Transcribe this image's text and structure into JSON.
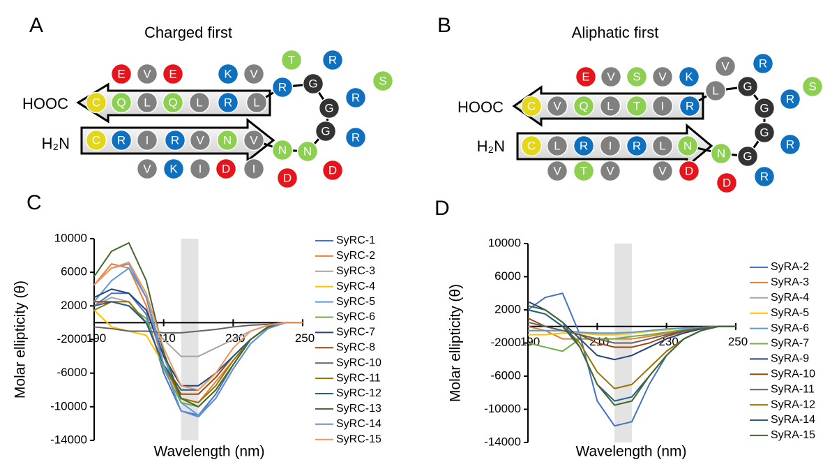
{
  "diagrams": [
    {
      "panel": "A",
      "title": "Charged first",
      "c_term": "HOOC",
      "n_term": "H₂N",
      "residues": [
        {
          "label": "E",
          "color": "#e8141b"
        },
        {
          "label": "V",
          "color": "#808080"
        },
        {
          "label": "E",
          "color": "#e8141b"
        },
        {
          "label": "K",
          "color": "#1070c0"
        },
        {
          "label": "V",
          "color": "#808080"
        },
        {
          "label": "C",
          "color": "#e3d61b"
        },
        {
          "label": "Q",
          "color": "#8dcf50"
        },
        {
          "label": "L",
          "color": "#808080"
        },
        {
          "label": "Q",
          "color": "#8dcf50"
        },
        {
          "label": "L",
          "color": "#808080"
        },
        {
          "label": "R",
          "color": "#1070c0"
        },
        {
          "label": "L",
          "color": "#808080"
        },
        {
          "label": "R",
          "color": "#1070c0"
        },
        {
          "label": "G",
          "color": "#333333"
        },
        {
          "label": "G",
          "color": "#333333"
        },
        {
          "label": "G",
          "color": "#333333"
        },
        {
          "label": "N",
          "color": "#8dcf50"
        },
        {
          "label": "N",
          "color": "#8dcf50"
        },
        {
          "label": "T",
          "color": "#8dcf50"
        },
        {
          "label": "R",
          "color": "#1070c0"
        },
        {
          "label": "R",
          "color": "#1070c0"
        },
        {
          "label": "R",
          "color": "#1070c0"
        },
        {
          "label": "S",
          "color": "#8dcf50"
        },
        {
          "label": "D",
          "color": "#e8141b"
        },
        {
          "label": "D",
          "color": "#e8141b"
        },
        {
          "label": "C",
          "color": "#e3d61b"
        },
        {
          "label": "R",
          "color": "#1070c0"
        },
        {
          "label": "I",
          "color": "#808080"
        },
        {
          "label": "R",
          "color": "#1070c0"
        },
        {
          "label": "V",
          "color": "#808080"
        },
        {
          "label": "N",
          "color": "#8dcf50"
        },
        {
          "label": "V",
          "color": "#808080"
        },
        {
          "label": "V",
          "color": "#808080"
        },
        {
          "label": "K",
          "color": "#1070c0"
        },
        {
          "label": "I",
          "color": "#808080"
        },
        {
          "label": "D",
          "color": "#e8141b"
        },
        {
          "label": "I",
          "color": "#808080"
        }
      ]
    },
    {
      "panel": "B",
      "title": "Aliphatic first",
      "c_term": "HOOC",
      "n_term": "H₂N",
      "residues": [
        {
          "label": "E",
          "color": "#e8141b"
        },
        {
          "label": "V",
          "color": "#808080"
        },
        {
          "label": "S",
          "color": "#8dcf50"
        },
        {
          "label": "V",
          "color": "#808080"
        },
        {
          "label": "K",
          "color": "#1070c0"
        },
        {
          "label": "C",
          "color": "#e3d61b"
        },
        {
          "label": "V",
          "color": "#808080"
        },
        {
          "label": "Q",
          "color": "#8dcf50"
        },
        {
          "label": "L",
          "color": "#808080"
        },
        {
          "label": "T",
          "color": "#8dcf50"
        },
        {
          "label": "I",
          "color": "#808080"
        },
        {
          "label": "R",
          "color": "#1070c0"
        },
        {
          "label": "L",
          "color": "#808080"
        },
        {
          "label": "V",
          "color": "#808080"
        },
        {
          "label": "G",
          "color": "#333333"
        },
        {
          "label": "G",
          "color": "#333333"
        },
        {
          "label": "G",
          "color": "#333333"
        },
        {
          "label": "G",
          "color": "#333333"
        },
        {
          "label": "N",
          "color": "#8dcf50"
        },
        {
          "label": "R",
          "color": "#1070c0"
        },
        {
          "label": "R",
          "color": "#1070c0"
        },
        {
          "label": "S",
          "color": "#8dcf50"
        },
        {
          "label": "R",
          "color": "#1070c0"
        },
        {
          "label": "R",
          "color": "#1070c0"
        },
        {
          "label": "D",
          "color": "#e8141b"
        },
        {
          "label": "C",
          "color": "#e3d61b"
        },
        {
          "label": "L",
          "color": "#808080"
        },
        {
          "label": "R",
          "color": "#1070c0"
        },
        {
          "label": "I",
          "color": "#808080"
        },
        {
          "label": "R",
          "color": "#1070c0"
        },
        {
          "label": "L",
          "color": "#808080"
        },
        {
          "label": "N",
          "color": "#8dcf50"
        },
        {
          "label": "V",
          "color": "#808080"
        },
        {
          "label": "T",
          "color": "#8dcf50"
        },
        {
          "label": "V",
          "color": "#808080"
        },
        {
          "label": "V",
          "color": "#808080"
        },
        {
          "label": "D",
          "color": "#e8141b"
        }
      ]
    }
  ],
  "chart_data": [
    {
      "type": "line",
      "panel": "C",
      "x_label": "Wavelength (nm)",
      "y_label": "Molar ellipticity (θ)",
      "xlim": [
        190,
        250
      ],
      "ylim": [
        -14000,
        10000
      ],
      "xticks": [
        190,
        210,
        230,
        250
      ],
      "yticks": [
        -14000,
        -10000,
        -6000,
        -2000,
        2000,
        6000,
        10000
      ],
      "shaded_range": [
        215,
        220
      ],
      "shade_color": "#e3e3e3",
      "x": [
        190,
        195,
        200,
        205,
        210,
        215,
        220,
        225,
        230,
        235,
        240,
        245,
        250
      ],
      "series": [
        {
          "name": "SyRC-1",
          "color": "#4472c4",
          "values": [
            2000,
            3500,
            3500,
            1000,
            -6000,
            -10500,
            -11000,
            -8500,
            -5000,
            -2000,
            -500,
            0,
            0
          ]
        },
        {
          "name": "SyRC-2",
          "color": "#ed7d31",
          "values": [
            4500,
            7000,
            6500,
            2000,
            -5000,
            -9000,
            -9500,
            -7000,
            -4500,
            -2000,
            -500,
            0,
            0
          ]
        },
        {
          "name": "SyRC-3",
          "color": "#a5a5a5",
          "values": [
            2000,
            3000,
            2500,
            0,
            -2000,
            -4000,
            -4000,
            -3000,
            -2000,
            -1000,
            -300,
            0,
            0
          ]
        },
        {
          "name": "SyRC-4",
          "color": "#ffc000",
          "values": [
            1500,
            -500,
            -1000,
            -1500,
            -5000,
            -8000,
            -8000,
            -6000,
            -4000,
            -2000,
            -500,
            0,
            0
          ]
        },
        {
          "name": "SyRC-5",
          "color": "#5b9bd5",
          "values": [
            2500,
            5000,
            6500,
            3000,
            -4000,
            -9500,
            -11000,
            -9000,
            -5500,
            -2500,
            -700,
            0,
            0
          ]
        },
        {
          "name": "SyRC-6",
          "color": "#70ad47",
          "values": [
            2500,
            2500,
            2000,
            500,
            -5500,
            -9500,
            -10000,
            -8000,
            -5000,
            -2000,
            -500,
            0,
            0
          ]
        },
        {
          "name": "SyRC-7",
          "color": "#264478",
          "values": [
            3000,
            4000,
            3500,
            1500,
            -4000,
            -7500,
            -7500,
            -6000,
            -4000,
            -2000,
            -500,
            0,
            0
          ]
        },
        {
          "name": "SyRC-8",
          "color": "#9e480e",
          "values": [
            2500,
            2500,
            2000,
            0,
            -5000,
            -8500,
            -8500,
            -6500,
            -4000,
            -2000,
            -500,
            0,
            0
          ]
        },
        {
          "name": "SyRC-10",
          "color": "#636363",
          "values": [
            -500,
            -700,
            -1000,
            -1000,
            -1200,
            -1200,
            -1000,
            -800,
            -500,
            -300,
            -200,
            0,
            0
          ]
        },
        {
          "name": "SyRC-11",
          "color": "#997300",
          "values": [
            1500,
            2500,
            2500,
            0,
            -5000,
            -9000,
            -9500,
            -7500,
            -4500,
            -2000,
            -500,
            0,
            0
          ]
        },
        {
          "name": "SyRC-12",
          "color": "#255e91",
          "values": [
            2000,
            2500,
            2000,
            0,
            -5000,
            -8000,
            -8000,
            -6000,
            -4000,
            -2000,
            -500,
            0,
            0
          ]
        },
        {
          "name": "SyRC-13",
          "color": "#43682b",
          "values": [
            5500,
            8500,
            9500,
            5000,
            -3500,
            -9000,
            -10000,
            -8000,
            -5000,
            -2000,
            -500,
            0,
            0
          ]
        },
        {
          "name": "SyRC-14",
          "color": "#698ed0",
          "values": [
            4500,
            6500,
            7000,
            3000,
            -5000,
            -10500,
            -11200,
            -9000,
            -5500,
            -2500,
            -700,
            0,
            0
          ]
        },
        {
          "name": "SyRC-15",
          "color": "#f1975a",
          "values": [
            4500,
            6500,
            7200,
            3500,
            -3000,
            -7500,
            -8000,
            -6000,
            -3000,
            -1000,
            -300,
            0,
            0
          ]
        }
      ]
    },
    {
      "type": "line",
      "panel": "D",
      "x_label": "Wavelength (nm)",
      "y_label": "Molar ellipticity (θ)",
      "xlim": [
        190,
        250
      ],
      "ylim": [
        -14000,
        10000
      ],
      "xticks": [
        190,
        210,
        230,
        250
      ],
      "yticks": [
        -14000,
        -10000,
        -6000,
        -2000,
        2000,
        6000,
        10000
      ],
      "shaded_range": [
        215,
        220
      ],
      "shade_color": "#e3e3e3",
      "x": [
        190,
        195,
        200,
        205,
        210,
        215,
        220,
        225,
        230,
        235,
        240,
        245,
        250
      ],
      "series": [
        {
          "name": "SyRA-2",
          "color": "#4472c4",
          "values": [
            2000,
            3500,
            4000,
            -1000,
            -9000,
            -12000,
            -11500,
            -7000,
            -3500,
            -1500,
            -500,
            0,
            0
          ]
        },
        {
          "name": "SyRA-3",
          "color": "#ed7d31",
          "values": [
            0,
            -500,
            -1500,
            -1500,
            -1500,
            -1500,
            -1500,
            -1200,
            -800,
            -500,
            -200,
            0,
            0
          ]
        },
        {
          "name": "SyRA-4",
          "color": "#a5a5a5",
          "values": [
            -500,
            -500,
            -500,
            -700,
            -1000,
            -1000,
            -800,
            -600,
            -400,
            -200,
            -100,
            0,
            0
          ]
        },
        {
          "name": "SyRA-5",
          "color": "#ffc000",
          "values": [
            -1000,
            -1000,
            -800,
            -800,
            -1000,
            -1000,
            -800,
            -600,
            -400,
            -200,
            -100,
            0,
            0
          ]
        },
        {
          "name": "SyRA-6",
          "color": "#5b9bd5",
          "values": [
            -500,
            -500,
            -500,
            -700,
            -800,
            -800,
            -700,
            -500,
            -300,
            -200,
            -100,
            0,
            0
          ]
        },
        {
          "name": "SyRA-7",
          "color": "#70ad47",
          "values": [
            -2000,
            -2500,
            -3000,
            -1500,
            -1500,
            -1500,
            -1200,
            -1000,
            -700,
            -400,
            -200,
            0,
            0
          ]
        },
        {
          "name": "SyRA-9",
          "color": "#264478",
          "values": [
            3000,
            2000,
            500,
            -1500,
            -3500,
            -4000,
            -3500,
            -2500,
            -1500,
            -800,
            -300,
            0,
            0
          ]
        },
        {
          "name": "SyRA-10",
          "color": "#9e480e",
          "values": [
            1000,
            0,
            -500,
            -1000,
            -2000,
            -2500,
            -2500,
            -2000,
            -1200,
            -600,
            -200,
            0,
            0
          ]
        },
        {
          "name": "SyRA-11",
          "color": "#636363",
          "values": [
            500,
            0,
            -500,
            -1000,
            -1500,
            -2000,
            -2000,
            -1500,
            -1000,
            -500,
            -200,
            0,
            0
          ]
        },
        {
          "name": "SyRA-12",
          "color": "#997300",
          "values": [
            2000,
            1500,
            0,
            -2000,
            -5500,
            -7500,
            -7000,
            -5000,
            -3000,
            -1500,
            -500,
            0,
            0
          ]
        },
        {
          "name": "SyRA-14",
          "color": "#255e91",
          "values": [
            2000,
            1500,
            0,
            -2500,
            -7000,
            -9000,
            -8500,
            -6000,
            -3500,
            -1500,
            -500,
            0,
            0
          ]
        },
        {
          "name": "SyRA-15",
          "color": "#43682b",
          "values": [
            2500,
            2000,
            500,
            -2500,
            -7000,
            -9500,
            -9000,
            -6000,
            -3500,
            -1500,
            -500,
            0,
            0
          ]
        }
      ]
    }
  ]
}
